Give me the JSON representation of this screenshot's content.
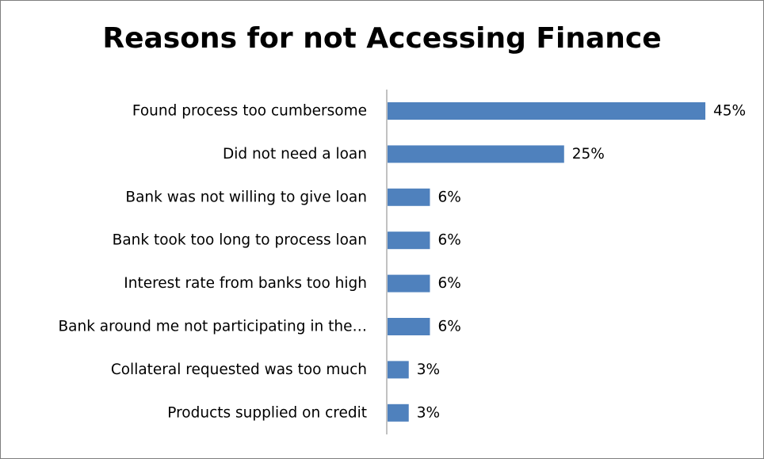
{
  "chart_data": {
    "type": "bar",
    "orientation": "horizontal",
    "title": "Reasons for not Accessing Finance",
    "categories": [
      "Found process too cumbersome",
      "Did not need a loan",
      "Bank was not willing to give loan",
      "Bank took too long to process loan",
      "Interest rate from banks too high",
      "Bank around me not participating in the…",
      "Collateral requested was too much",
      "Products supplied on credit"
    ],
    "values": [
      45,
      25,
      6,
      6,
      6,
      6,
      3,
      3
    ],
    "value_labels": [
      "45%",
      "25%",
      "6%",
      "6%",
      "6%",
      "6%",
      "3%",
      "3%"
    ],
    "unit": "%",
    "xlim": [
      0,
      45
    ],
    "grid": false,
    "legend": "none",
    "colors": {
      "bar": "#4f81bd",
      "axis": "#868686",
      "border": "#7f7f7f"
    }
  }
}
